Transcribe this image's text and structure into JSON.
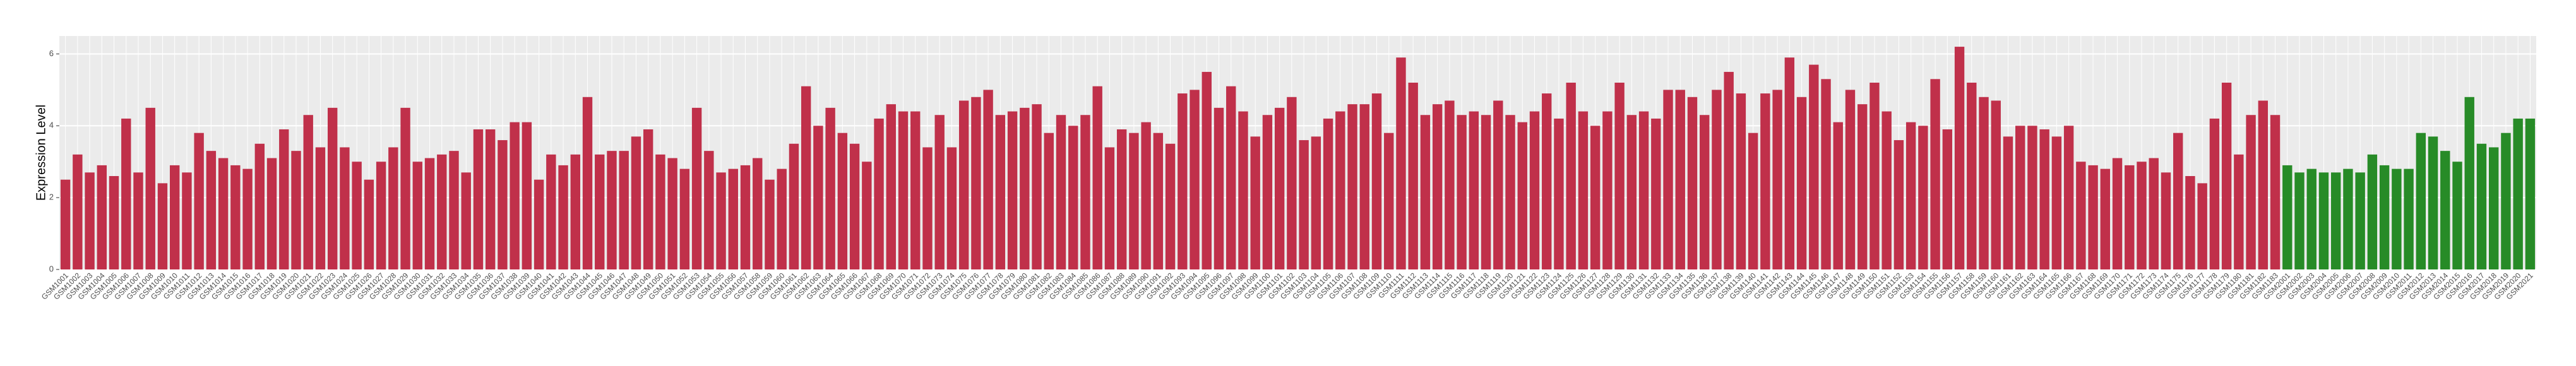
{
  "chart_data": {
    "type": "bar",
    "y_label": "Expression Level",
    "ylim": [
      0,
      6.5
    ],
    "yticks": [
      0,
      2,
      4,
      6
    ],
    "grid": true,
    "color_groups": [
      {
        "color": "#c0304a",
        "count": 183
      },
      {
        "color": "#278b27",
        "count": 21
      }
    ],
    "categories": [
      "GSM1001",
      "GSM1002",
      "GSM1003",
      "GSM1004",
      "GSM1005",
      "GSM1006",
      "GSM1007",
      "GSM1008",
      "GSM1009",
      "GSM1010",
      "GSM1011",
      "GSM1012",
      "GSM1013",
      "GSM1014",
      "GSM1015",
      "GSM1016",
      "GSM1017",
      "GSM1018",
      "GSM1019",
      "GSM1020",
      "GSM1021",
      "GSM1022",
      "GSM1023",
      "GSM1024",
      "GSM1025",
      "GSM1026",
      "GSM1027",
      "GSM1028",
      "GSM1029",
      "GSM1030",
      "GSM1031",
      "GSM1032",
      "GSM1033",
      "GSM1034",
      "GSM1035",
      "GSM1036",
      "GSM1037",
      "GSM1038",
      "GSM1039",
      "GSM1040",
      "GSM1041",
      "GSM1042",
      "GSM1043",
      "GSM1044",
      "GSM1045",
      "GSM1046",
      "GSM1047",
      "GSM1048",
      "GSM1049",
      "GSM1050",
      "GSM1051",
      "GSM1052",
      "GSM1053",
      "GSM1054",
      "GSM1055",
      "GSM1056",
      "GSM1057",
      "GSM1058",
      "GSM1059",
      "GSM1060",
      "GSM1061",
      "GSM1062",
      "GSM1063",
      "GSM1064",
      "GSM1065",
      "GSM1066",
      "GSM1067",
      "GSM1068",
      "GSM1069",
      "GSM1070",
      "GSM1071",
      "GSM1072",
      "GSM1073",
      "GSM1074",
      "GSM1075",
      "GSM1076",
      "GSM1077",
      "GSM1078",
      "GSM1079",
      "GSM1080",
      "GSM1081",
      "GSM1082",
      "GSM1083",
      "GSM1084",
      "GSM1085",
      "GSM1086",
      "GSM1087",
      "GSM1088",
      "GSM1089",
      "GSM1090",
      "GSM1091",
      "GSM1092",
      "GSM1093",
      "GSM1094",
      "GSM1095",
      "GSM1096",
      "GSM1097",
      "GSM1098",
      "GSM1099",
      "GSM1100",
      "GSM1101",
      "GSM1102",
      "GSM1103",
      "GSM1104",
      "GSM1105",
      "GSM1106",
      "GSM1107",
      "GSM1108",
      "GSM1109",
      "GSM1110",
      "GSM1111",
      "GSM1112",
      "GSM1113",
      "GSM1114",
      "GSM1115",
      "GSM1116",
      "GSM1117",
      "GSM1118",
      "GSM1119",
      "GSM1120",
      "GSM1121",
      "GSM1122",
      "GSM1123",
      "GSM1124",
      "GSM1125",
      "GSM1126",
      "GSM1127",
      "GSM1128",
      "GSM1129",
      "GSM1130",
      "GSM1131",
      "GSM1132",
      "GSM1133",
      "GSM1134",
      "GSM1135",
      "GSM1136",
      "GSM1137",
      "GSM1138",
      "GSM1139",
      "GSM1140",
      "GSM1141",
      "GSM1142",
      "GSM1143",
      "GSM1144",
      "GSM1145",
      "GSM1146",
      "GSM1147",
      "GSM1148",
      "GSM1149",
      "GSM1150",
      "GSM1151",
      "GSM1152",
      "GSM1153",
      "GSM1154",
      "GSM1155",
      "GSM1156",
      "GSM1157",
      "GSM1158",
      "GSM1159",
      "GSM1160",
      "GSM1161",
      "GSM1162",
      "GSM1163",
      "GSM1164",
      "GSM1165",
      "GSM1166",
      "GSM1167",
      "GSM1168",
      "GSM1169",
      "GSM1170",
      "GSM1171",
      "GSM1172",
      "GSM1173",
      "GSM1174",
      "GSM1175",
      "GSM1176",
      "GSM1177",
      "GSM1178",
      "GSM1179",
      "GSM1180",
      "GSM1181",
      "GSM1182",
      "GSM1183",
      "GSM2001",
      "GSM2002",
      "GSM2003",
      "GSM2004",
      "GSM2005",
      "GSM2006",
      "GSM2007",
      "GSM2008",
      "GSM2009",
      "GSM2010",
      "GSM2011",
      "GSM2012",
      "GSM2013",
      "GSM2014",
      "GSM2015",
      "GSM2016",
      "GSM2017",
      "GSM2018",
      "GSM2019",
      "GSM2020",
      "GSM2021"
    ],
    "values": [
      2.5,
      3.2,
      2.7,
      2.9,
      2.6,
      4.2,
      2.7,
      4.5,
      2.4,
      2.9,
      2.7,
      3.8,
      3.3,
      3.1,
      2.9,
      2.8,
      3.5,
      3.1,
      3.9,
      3.3,
      4.3,
      3.4,
      4.5,
      3.4,
      3.0,
      2.5,
      3.0,
      3.4,
      4.5,
      3.0,
      3.1,
      3.2,
      3.3,
      2.7,
      3.9,
      3.9,
      3.6,
      4.1,
      4.1,
      2.5,
      3.2,
      2.9,
      3.2,
      4.8,
      3.2,
      3.3,
      3.3,
      3.7,
      3.9,
      3.2,
      3.1,
      2.8,
      4.5,
      3.3,
      2.7,
      2.8,
      2.9,
      3.1,
      2.5,
      2.8,
      3.5,
      5.1,
      4.0,
      4.5,
      3.8,
      3.5,
      3.0,
      4.2,
      4.6,
      4.4,
      4.4,
      3.4,
      4.3,
      3.4,
      4.7,
      4.8,
      5.0,
      4.3,
      4.4,
      4.5,
      4.6,
      3.8,
      4.3,
      4.0,
      4.3,
      5.1,
      3.4,
      3.9,
      3.8,
      4.1,
      3.8,
      3.5,
      4.9,
      5.0,
      5.5,
      4.5,
      5.1,
      4.4,
      3.7,
      4.3,
      4.5,
      4.8,
      3.6,
      3.7,
      4.2,
      4.4,
      4.6,
      4.6,
      4.9,
      3.8,
      5.9,
      5.2,
      4.3,
      4.6,
      4.7,
      4.3,
      4.4,
      4.3,
      4.7,
      4.3,
      4.1,
      4.4,
      4.9,
      4.2,
      5.2,
      4.4,
      4.0,
      4.4,
      5.2,
      4.3,
      4.4,
      4.2,
      5.0,
      5.0,
      4.8,
      4.3,
      5.0,
      5.5,
      4.9,
      3.8,
      4.9,
      5.0,
      5.9,
      4.8,
      5.7,
      5.3,
      4.1,
      5.0,
      4.6,
      5.2,
      4.4,
      3.6,
      4.1,
      4.0,
      5.3,
      3.9,
      6.2,
      5.2,
      4.8,
      4.7,
      3.7,
      4.0,
      4.0,
      3.9,
      3.7,
      4.0,
      3.0,
      2.9,
      2.8,
      3.1,
      2.9,
      3.0,
      3.1,
      2.7,
      3.8,
      2.6,
      2.4,
      4.2,
      5.2,
      3.2,
      4.3,
      4.7,
      4.3,
      2.9,
      2.7,
      2.8,
      2.7,
      2.7,
      2.8,
      2.7,
      3.2,
      2.9,
      2.8,
      2.8,
      3.8,
      3.7,
      3.3,
      3.0,
      4.8,
      3.5,
      3.4,
      3.8,
      4.2,
      4.2
    ]
  }
}
